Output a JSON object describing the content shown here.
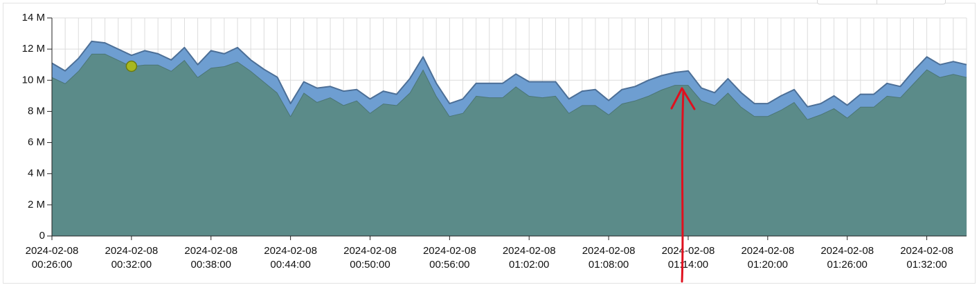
{
  "chart_data": {
    "type": "stacked_area",
    "x": [
      "2024-02-08 00:26:00",
      "2024-02-08 00:27:00",
      "2024-02-08 00:28:00",
      "2024-02-08 00:29:00",
      "2024-02-08 00:30:00",
      "2024-02-08 00:31:00",
      "2024-02-08 00:32:00",
      "2024-02-08 00:33:00",
      "2024-02-08 00:34:00",
      "2024-02-08 00:35:00",
      "2024-02-08 00:36:00",
      "2024-02-08 00:37:00",
      "2024-02-08 00:38:00",
      "2024-02-08 00:39:00",
      "2024-02-08 00:40:00",
      "2024-02-08 00:41:00",
      "2024-02-08 00:42:00",
      "2024-02-08 00:43:00",
      "2024-02-08 00:44:00",
      "2024-02-08 00:45:00",
      "2024-02-08 00:46:00",
      "2024-02-08 00:47:00",
      "2024-02-08 00:48:00",
      "2024-02-08 00:49:00",
      "2024-02-08 00:50:00",
      "2024-02-08 00:51:00",
      "2024-02-08 00:52:00",
      "2024-02-08 00:53:00",
      "2024-02-08 00:54:00",
      "2024-02-08 00:55:00",
      "2024-02-08 00:56:00",
      "2024-02-08 00:57:00",
      "2024-02-08 00:58:00",
      "2024-02-08 00:59:00",
      "2024-02-08 01:00:00",
      "2024-02-08 01:01:00",
      "2024-02-08 01:02:00",
      "2024-02-08 01:03:00",
      "2024-02-08 01:04:00",
      "2024-02-08 01:05:00",
      "2024-02-08 01:06:00",
      "2024-02-08 01:07:00",
      "2024-02-08 01:08:00",
      "2024-02-08 01:09:00",
      "2024-02-08 01:10:00",
      "2024-02-08 01:11:00",
      "2024-02-08 01:12:00",
      "2024-02-08 01:13:00",
      "2024-02-08 01:14:00",
      "2024-02-08 01:15:00",
      "2024-02-08 01:16:00",
      "2024-02-08 01:17:00",
      "2024-02-08 01:18:00",
      "2024-02-08 01:19:00",
      "2024-02-08 01:20:00",
      "2024-02-08 01:21:00",
      "2024-02-08 01:22:00",
      "2024-02-08 01:23:00",
      "2024-02-08 01:24:00",
      "2024-02-08 01:25:00",
      "2024-02-08 01:26:00",
      "2024-02-08 01:27:00",
      "2024-02-08 01:28:00",
      "2024-02-08 01:29:00",
      "2024-02-08 01:30:00",
      "2024-02-08 01:31:00",
      "2024-02-08 01:32:00",
      "2024-02-08 01:33:00",
      "2024-02-08 01:34:00",
      "2024-02-08 01:35:00"
    ],
    "series": [
      {
        "color": "#5b8b89",
        "line_color": "#4b7574",
        "values": [
          10200000,
          9800000,
          10600000,
          11700000,
          11700000,
          11300000,
          10900000,
          11000000,
          11000000,
          10600000,
          11300000,
          10200000,
          10800000,
          10900000,
          11200000,
          10600000,
          9900000,
          9200000,
          7700000,
          9200000,
          8600000,
          8900000,
          8400000,
          8700000,
          7900000,
          8500000,
          8400000,
          9200000,
          10700000,
          9000000,
          7700000,
          7900000,
          9000000,
          8900000,
          8900000,
          9600000,
          9000000,
          8900000,
          9000000,
          7900000,
          8400000,
          8400000,
          7800000,
          8500000,
          8700000,
          9000000,
          9400000,
          9700000,
          9700000,
          8700000,
          8400000,
          9200000,
          8300000,
          7700000,
          7700000,
          8100000,
          8600000,
          7500000,
          7800000,
          8200000,
          7600000,
          8300000,
          8300000,
          9000000,
          8900000,
          9800000,
          10700000,
          10200000,
          10400000,
          10200000
        ]
      },
      {
        "color": "#6e9ed1",
        "line_color": "#4c6f97",
        "values": [
          900000,
          800000,
          800000,
          800000,
          700000,
          700000,
          700000,
          900000,
          700000,
          700000,
          800000,
          800000,
          1100000,
          800000,
          900000,
          700000,
          800000,
          1000000,
          800000,
          700000,
          900000,
          700000,
          900000,
          700000,
          900000,
          800000,
          700000,
          900000,
          800000,
          800000,
          800000,
          900000,
          800000,
          900000,
          900000,
          800000,
          900000,
          1000000,
          900000,
          900000,
          900000,
          1000000,
          900000,
          900000,
          900000,
          1000000,
          900000,
          800000,
          900000,
          800000,
          800000,
          900000,
          900000,
          800000,
          800000,
          900000,
          800000,
          800000,
          700000,
          800000,
          800000,
          800000,
          800000,
          800000,
          700000,
          800000,
          800000,
          800000,
          800000,
          800000
        ]
      }
    ],
    "xlim": [
      "2024-02-08 00:26:00",
      "2024-02-08 01:35:00"
    ],
    "xticks": [
      "2024-02-08 00:26:00",
      "2024-02-08 00:32:00",
      "2024-02-08 00:38:00",
      "2024-02-08 00:44:00",
      "2024-02-08 00:50:00",
      "2024-02-08 00:56:00",
      "2024-02-08 01:02:00",
      "2024-02-08 01:08:00",
      "2024-02-08 01:14:00",
      "2024-02-08 01:20:00",
      "2024-02-08 01:26:00",
      "2024-02-08 01:32:00"
    ],
    "ylim": [
      0,
      14000000
    ],
    "yticks": [
      0,
      {
        "value": 2000000,
        "label": "2 M"
      },
      {
        "value": 4000000,
        "label": "4 M"
      },
      {
        "value": 6000000,
        "label": "6 M"
      },
      {
        "value": 8000000,
        "label": "8 M"
      },
      {
        "value": 10000000,
        "label": "10 M"
      },
      {
        "value": 12000000,
        "label": "12 M"
      },
      {
        "value": 14000000,
        "label": "14 M"
      }
    ],
    "grid": true,
    "highlight_index": 6,
    "highlight_color": "#a8b820"
  }
}
